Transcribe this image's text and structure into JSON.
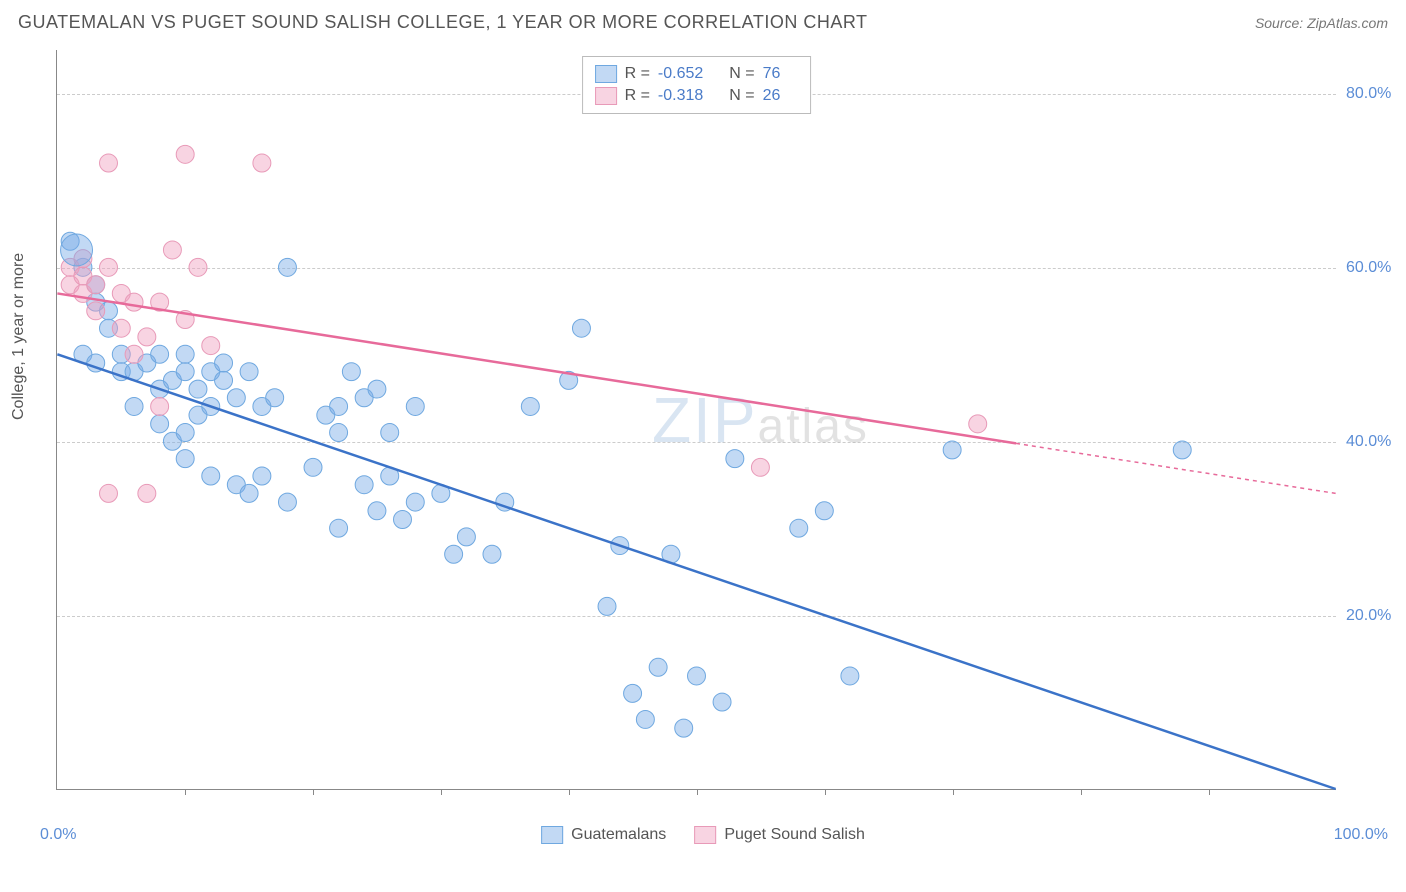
{
  "header": {
    "title": "GUATEMALAN VS PUGET SOUND SALISH COLLEGE, 1 YEAR OR MORE CORRELATION CHART",
    "source": "Source: ZipAtlas.com"
  },
  "watermark": {
    "main": "ZIP",
    "suffix": "atlas"
  },
  "chart": {
    "type": "scatter",
    "y_axis_label": "College, 1 year or more",
    "xlim": [
      0,
      100
    ],
    "ylim": [
      0,
      85
    ],
    "y_ticks": [
      20,
      40,
      60,
      80
    ],
    "y_tick_labels": [
      "20.0%",
      "40.0%",
      "60.0%",
      "80.0%"
    ],
    "x_tick_positions": [
      10,
      20,
      30,
      40,
      50,
      60,
      70,
      80,
      90
    ],
    "x_min_label": "0.0%",
    "x_max_label": "100.0%",
    "grid_color": "#cccccc",
    "axis_color": "#888888",
    "background_color": "#ffffff",
    "series": [
      {
        "name": "Guatemalans",
        "fill_color": "rgba(120,170,230,0.45)",
        "stroke_color": "#6fa8e0",
        "line_color": "#3b73c8",
        "marker_radius": 9,
        "R": "-0.652",
        "N": "76",
        "points": [
          [
            1,
            63
          ],
          [
            2,
            60
          ],
          [
            3,
            58
          ],
          [
            3,
            56
          ],
          [
            4,
            55
          ],
          [
            4,
            53
          ],
          [
            2,
            50
          ],
          [
            3,
            49
          ],
          [
            5,
            50
          ],
          [
            5,
            48
          ],
          [
            6,
            48
          ],
          [
            7,
            49
          ],
          [
            8,
            50
          ],
          [
            8,
            46
          ],
          [
            9,
            47
          ],
          [
            10,
            48
          ],
          [
            10,
            50
          ],
          [
            11,
            46
          ],
          [
            12,
            48
          ],
          [
            13,
            49
          ],
          [
            6,
            44
          ],
          [
            8,
            42
          ],
          [
            9,
            40
          ],
          [
            10,
            41
          ],
          [
            11,
            43
          ],
          [
            12,
            44
          ],
          [
            13,
            47
          ],
          [
            14,
            45
          ],
          [
            15,
            48
          ],
          [
            16,
            44
          ],
          [
            17,
            45
          ],
          [
            18,
            60
          ],
          [
            21,
            43
          ],
          [
            22,
            44
          ],
          [
            22,
            41
          ],
          [
            23,
            48
          ],
          [
            24,
            45
          ],
          [
            25,
            46
          ],
          [
            26,
            41
          ],
          [
            28,
            44
          ],
          [
            10,
            38
          ],
          [
            12,
            36
          ],
          [
            14,
            35
          ],
          [
            15,
            34
          ],
          [
            16,
            36
          ],
          [
            18,
            33
          ],
          [
            20,
            37
          ],
          [
            22,
            30
          ],
          [
            24,
            35
          ],
          [
            25,
            32
          ],
          [
            26,
            36
          ],
          [
            27,
            31
          ],
          [
            28,
            33
          ],
          [
            30,
            34
          ],
          [
            31,
            27
          ],
          [
            32,
            29
          ],
          [
            34,
            27
          ],
          [
            35,
            33
          ],
          [
            37,
            44
          ],
          [
            40,
            47
          ],
          [
            43,
            21
          ],
          [
            44,
            28
          ],
          [
            45,
            11
          ],
          [
            46,
            8
          ],
          [
            47,
            14
          ],
          [
            48,
            27
          ],
          [
            49,
            7
          ],
          [
            50,
            13
          ],
          [
            52,
            10
          ],
          [
            53,
            38
          ],
          [
            58,
            30
          ],
          [
            60,
            32
          ],
          [
            62,
            13
          ],
          [
            70,
            39
          ],
          [
            41,
            53
          ],
          [
            88,
            39
          ]
        ],
        "regression": {
          "x1": 0,
          "y1": 50,
          "x2": 100,
          "y2": 0,
          "dash_from_x": null
        }
      },
      {
        "name": "Puget Sound Salish",
        "fill_color": "rgba(240,160,190,0.45)",
        "stroke_color": "#e89ab8",
        "line_color": "#e76a9a",
        "marker_radius": 9,
        "R": "-0.318",
        "N": "26",
        "points": [
          [
            1,
            60
          ],
          [
            1,
            58
          ],
          [
            2,
            59
          ],
          [
            2,
            61
          ],
          [
            2,
            57
          ],
          [
            3,
            58
          ],
          [
            3,
            55
          ],
          [
            4,
            60
          ],
          [
            4,
            72
          ],
          [
            5,
            57
          ],
          [
            5,
            53
          ],
          [
            6,
            56
          ],
          [
            6,
            50
          ],
          [
            7,
            52
          ],
          [
            8,
            56
          ],
          [
            8,
            44
          ],
          [
            9,
            62
          ],
          [
            10,
            73
          ],
          [
            10,
            54
          ],
          [
            11,
            60
          ],
          [
            12,
            51
          ],
          [
            4,
            34
          ],
          [
            7,
            34
          ],
          [
            16,
            72
          ],
          [
            55,
            37
          ],
          [
            72,
            42
          ]
        ],
        "regression": {
          "x1": 0,
          "y1": 57,
          "x2": 100,
          "y2": 34,
          "dash_from_x": 75
        }
      }
    ],
    "legend_top": {
      "r_label": "R =",
      "n_label": "N ="
    },
    "label_fontsize": 16,
    "title_fontsize": 18,
    "text_color": "#555555",
    "value_color": "#4a7bc8"
  }
}
